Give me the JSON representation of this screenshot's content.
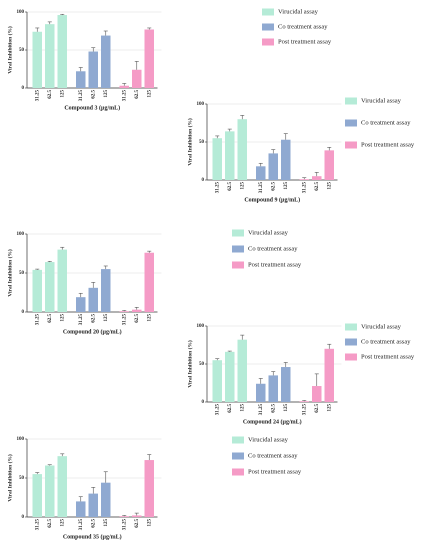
{
  "chart_data": [
    {
      "type": "bar",
      "xlabel": "Compound 3 (µg/mL)",
      "ylabel": "Viral Inhibition (%)",
      "categories": [
        "31.25",
        "62.5",
        "125"
      ],
      "ylim": [
        0,
        100
      ],
      "yticks": [
        0,
        50,
        100
      ],
      "grid": true,
      "series": [
        {
          "name": "Virucidal assay",
          "color": "#b5ebd7",
          "values": [
            74,
            84,
            96
          ],
          "errors": [
            5,
            3,
            1
          ]
        },
        {
          "name": "Co treatment assay",
          "color": "#8fa9d1",
          "values": [
            22,
            48,
            69
          ],
          "errors": [
            5,
            5,
            6
          ]
        },
        {
          "name": "Post treatment assay",
          "color": "#f59bc6",
          "values": [
            3,
            24,
            77
          ],
          "errors": [
            3,
            11,
            2
          ]
        }
      ]
    },
    {
      "type": "bar",
      "xlabel": "Compound 9 (µg/mL)",
      "ylabel": "Viral Inhibition (%)",
      "categories": [
        "31.25",
        "62.5",
        "125"
      ],
      "ylim": [
        0,
        100
      ],
      "yticks": [
        0,
        50,
        100
      ],
      "grid": true,
      "series": [
        {
          "name": "Virucidal assay",
          "color": "#b5ebd7",
          "values": [
            55,
            64,
            80
          ],
          "errors": [
            3,
            3,
            5
          ]
        },
        {
          "name": "Co treatment assay",
          "color": "#8fa9d1",
          "values": [
            18,
            35,
            53
          ],
          "errors": [
            4,
            5,
            8
          ]
        },
        {
          "name": "Post treatment assay",
          "color": "#f59bc6",
          "values": [
            1,
            5,
            39
          ],
          "errors": [
            2,
            5,
            4
          ]
        }
      ]
    },
    {
      "type": "bar",
      "xlabel": "Compound 20 (µg/mL)",
      "ylabel": "Viral Inhibition (%)",
      "categories": [
        "31.25",
        "62.5",
        "125"
      ],
      "ylim": [
        0,
        100
      ],
      "yticks": [
        0,
        50,
        100
      ],
      "grid": true,
      "series": [
        {
          "name": "Virucidal assay",
          "color": "#b5ebd7",
          "values": [
            54,
            64,
            80
          ],
          "errors": [
            1,
            1,
            3
          ]
        },
        {
          "name": "Co treatment assay",
          "color": "#8fa9d1",
          "values": [
            19,
            31,
            55
          ],
          "errors": [
            5,
            7,
            4
          ]
        },
        {
          "name": "Post treatment assay",
          "color": "#f59bc6",
          "values": [
            1,
            3,
            76
          ],
          "errors": [
            1,
            3,
            2
          ]
        }
      ]
    },
    {
      "type": "bar",
      "xlabel": "Compound 24 (µg/mL)",
      "ylabel": "Viral Inhibition (%)",
      "categories": [
        "31.25",
        "62.5",
        "125"
      ],
      "ylim": [
        0,
        100
      ],
      "yticks": [
        0,
        50,
        100
      ],
      "grid": true,
      "series": [
        {
          "name": "Virucidal assay",
          "color": "#b5ebd7",
          "values": [
            55,
            66,
            82
          ],
          "errors": [
            2,
            1,
            6
          ]
        },
        {
          "name": "Co treatment assay",
          "color": "#8fa9d1",
          "values": [
            24,
            35,
            46
          ],
          "errors": [
            7,
            5,
            6
          ]
        },
        {
          "name": "Post treatment assay",
          "color": "#f59bc6",
          "values": [
            1,
            21,
            70
          ],
          "errors": [
            1,
            16,
            6
          ]
        }
      ]
    },
    {
      "type": "bar",
      "xlabel": "Compound 35 (µg/mL)",
      "ylabel": "Viral Inhibition (%)",
      "categories": [
        "31.25",
        "62.5",
        "125"
      ],
      "ylim": [
        0,
        100
      ],
      "yticks": [
        0,
        50,
        100
      ],
      "grid": true,
      "series": [
        {
          "name": "Virucidal assay",
          "color": "#b5ebd7",
          "values": [
            55,
            66,
            78
          ],
          "errors": [
            2,
            1,
            3
          ]
        },
        {
          "name": "Co treatment assay",
          "color": "#8fa9d1",
          "values": [
            20,
            30,
            44
          ],
          "errors": [
            6,
            8,
            14
          ]
        },
        {
          "name": "Post treatment assay",
          "color": "#f59bc6",
          "values": [
            1,
            2,
            73
          ],
          "errors": [
            1,
            3,
            7
          ]
        }
      ]
    }
  ]
}
